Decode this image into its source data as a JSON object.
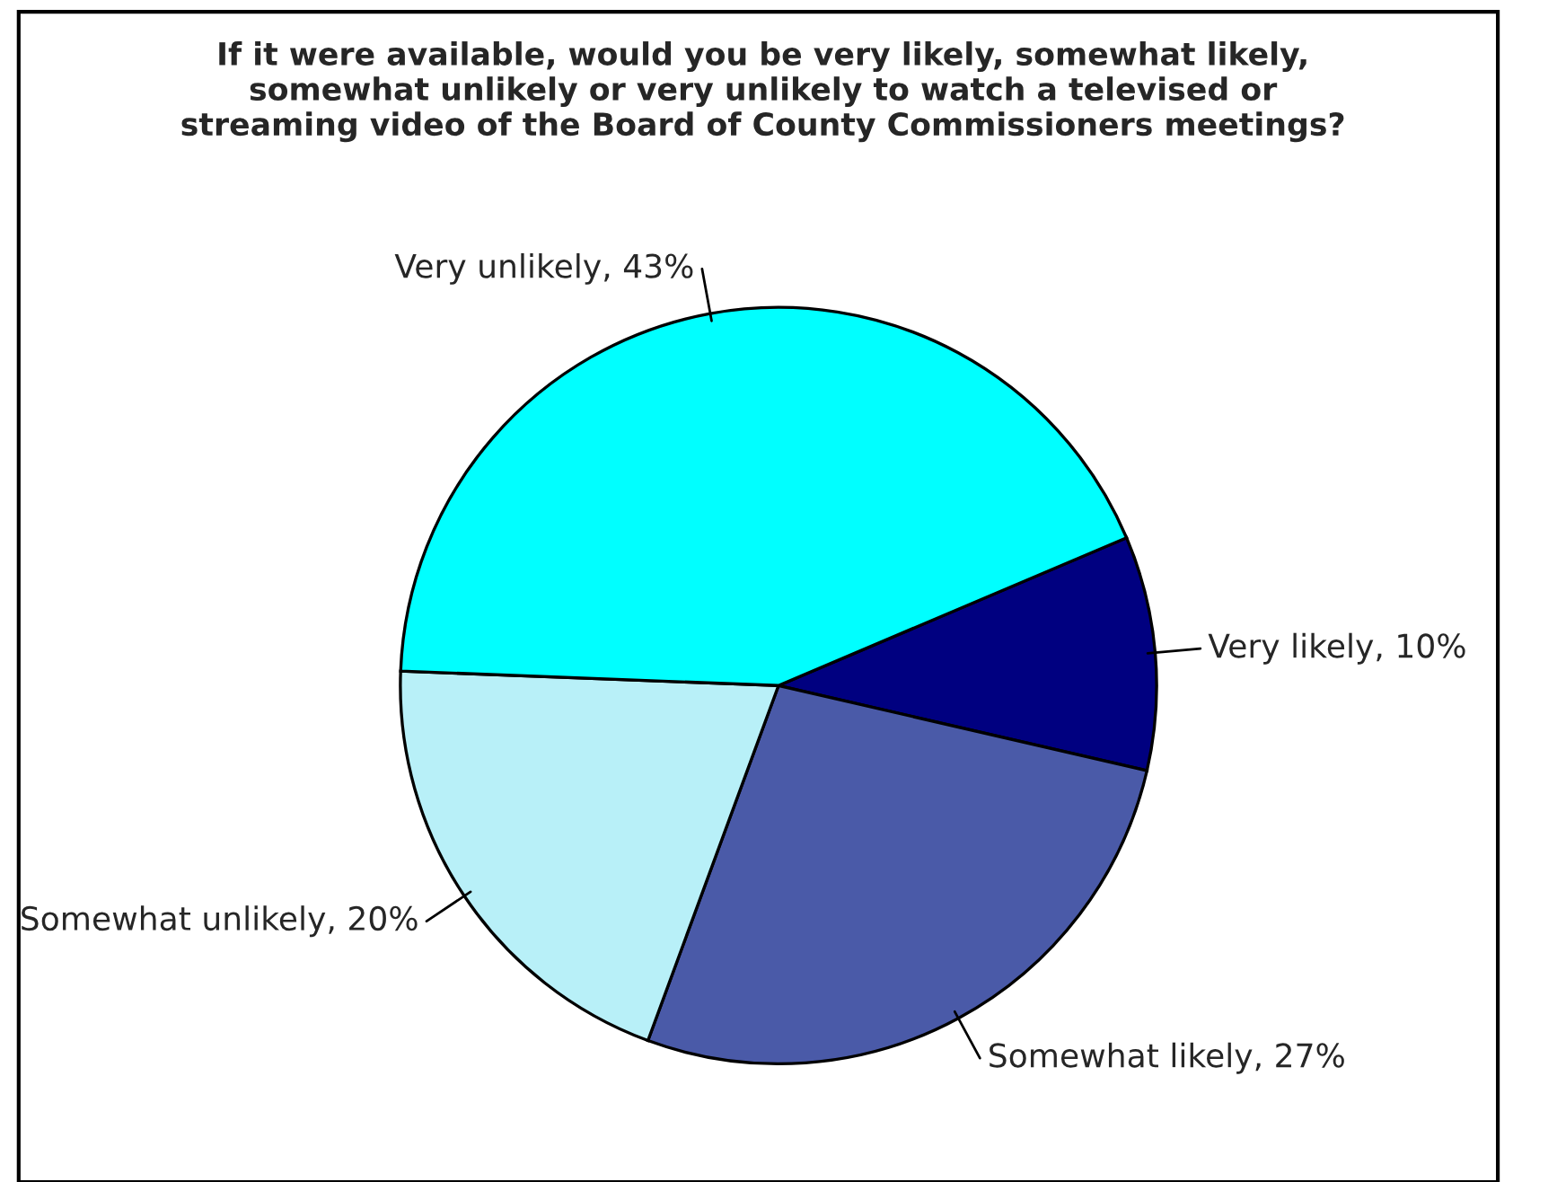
{
  "chart_data": {
    "type": "pie",
    "title": "If it were available, would you be very likely, somewhat likely, somewhat unlikely or very unlikely to watch a televised or streaming video of the Board of County Commissioners meetings?",
    "categories": [
      "Very likely",
      "Somewhat likely",
      "Somewhat unlikely",
      "Very unlikely"
    ],
    "values": [
      10,
      27,
      20,
      43
    ],
    "value_labels": [
      "10%",
      "27%",
      "20%",
      "43%"
    ],
    "colors": [
      "#000080",
      "#4a5aa8",
      "#b8f0f8",
      "#00ffff"
    ],
    "legend": false
  }
}
